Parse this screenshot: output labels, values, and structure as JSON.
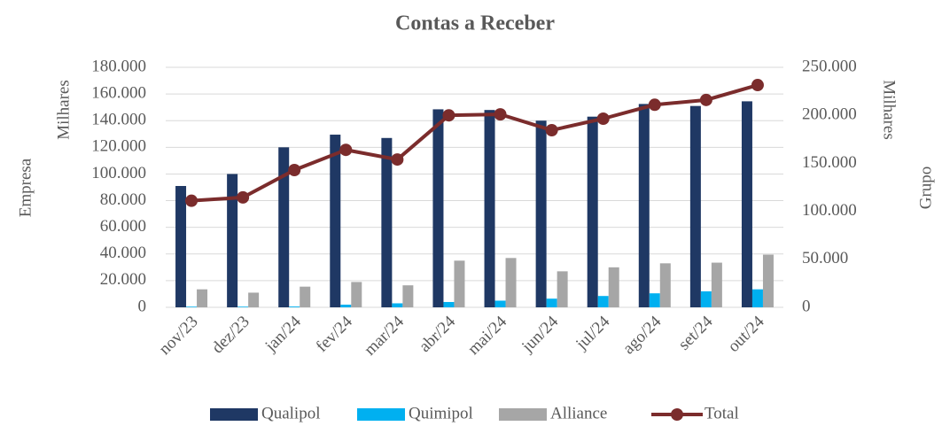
{
  "chart_data": {
    "type": "bar_line",
    "title": "Contas a Receber",
    "y_label": "Empresa",
    "y_units": "Milhares",
    "y2_label": "Grupo",
    "y2_units": "Milhares",
    "categories": [
      "nov/23",
      "dez/23",
      "jan/24",
      "fev/24",
      "mar/24",
      "abr/24",
      "mai/24",
      "jun/24",
      "jul/24",
      "ago/24",
      "set/24",
      "out/24"
    ],
    "series": [
      {
        "name": "Qualipol",
        "type": "bar",
        "color": "#1f3864",
        "values": [
          91000,
          100000,
          120000,
          129500,
          127000,
          148500,
          148000,
          140000,
          143000,
          152500,
          151000,
          154500
        ]
      },
      {
        "name": "Quimipol",
        "type": "bar",
        "color": "#00b0f0",
        "values": [
          500,
          500,
          600,
          2000,
          3000,
          4000,
          5000,
          6500,
          8500,
          10500,
          12000,
          13500
        ]
      },
      {
        "name": "Alliance",
        "type": "bar",
        "color": "#a6a6a6",
        "values": [
          13500,
          11000,
          15500,
          19000,
          16500,
          35000,
          37000,
          27000,
          30000,
          33000,
          33500,
          39500
        ]
      },
      {
        "name": "Total",
        "type": "line",
        "axis": "y2",
        "color": "#7b2c2c",
        "values": [
          111000,
          114500,
          143000,
          164000,
          154000,
          200000,
          201000,
          184500,
          196500,
          211000,
          216000,
          231500
        ]
      }
    ],
    "ylim": [
      0,
      180000
    ],
    "yticks": [
      0,
      {
        "value": 20000,
        "label": "20.000"
      },
      {
        "value": 40000,
        "label": "40.000"
      },
      {
        "value": 60000,
        "label": "60.000"
      },
      {
        "value": 80000,
        "label": "80.000"
      },
      {
        "value": 100000,
        "label": "100.000"
      },
      {
        "value": 120000,
        "label": "120.000"
      },
      {
        "value": 140000,
        "label": "140.000"
      },
      {
        "value": 160000,
        "label": "160.000"
      },
      {
        "value": 180000,
        "label": "180.000"
      }
    ],
    "y2lim": [
      0,
      250000
    ],
    "y2ticks": [
      0,
      {
        "value": 50000,
        "label": "50.000"
      },
      {
        "value": 100000,
        "label": "100.000"
      },
      {
        "value": 150000,
        "label": "150.000"
      },
      {
        "value": 200000,
        "label": "200.000"
      },
      {
        "value": 250000,
        "label": "250.000"
      }
    ],
    "grid": true,
    "legend": "bottom"
  }
}
